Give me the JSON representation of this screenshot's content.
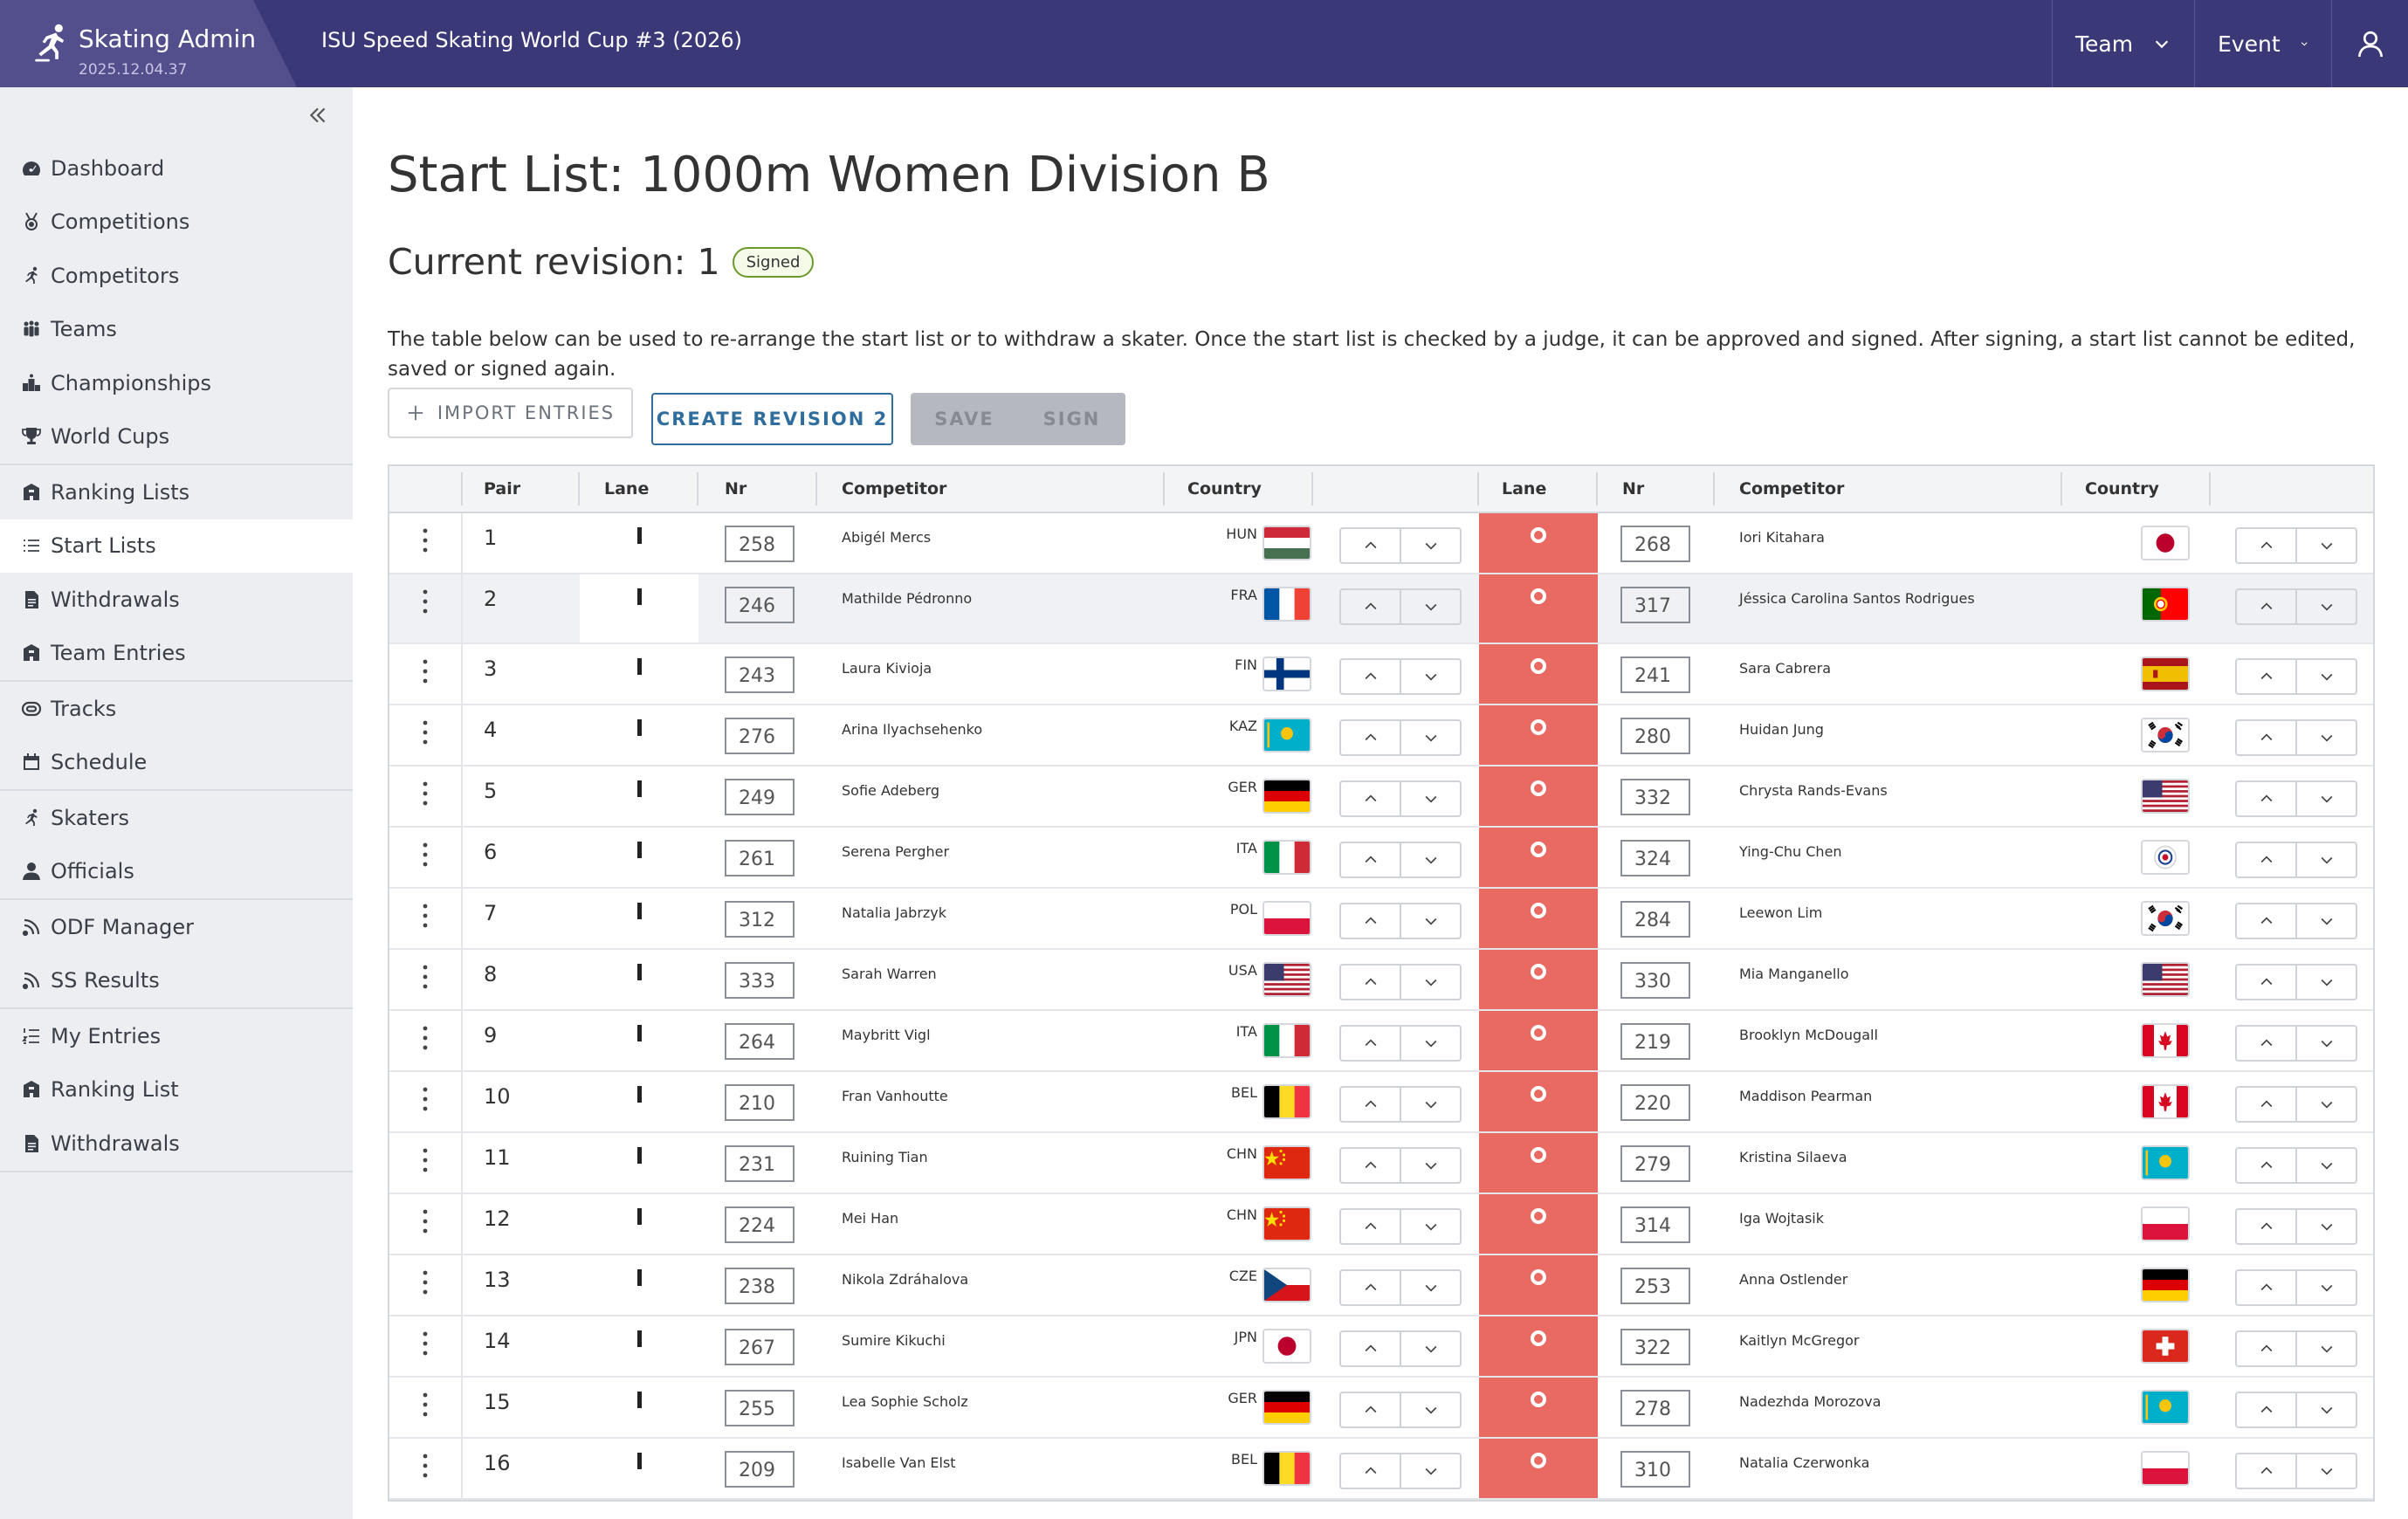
{
  "header": {
    "app_name": "Skating Admin",
    "version": "2025.12.04.37",
    "event_title": "ISU Speed Skating World Cup #3 (2026)",
    "nav_team": "Team",
    "nav_event": "Event",
    "user_icon": "user-icon",
    "bg_color": "#3b3878"
  },
  "sidebar": {
    "groups": [
      [
        {
          "label": "Dashboard",
          "icon": "dashboard-icon"
        },
        {
          "label": "Competitions",
          "icon": "medal-icon"
        },
        {
          "label": "Competitors",
          "icon": "skater-icon"
        },
        {
          "label": "Teams",
          "icon": "team-icon"
        },
        {
          "label": "Championships",
          "icon": "podium-icon"
        },
        {
          "label": "World Cups",
          "icon": "trophy-icon"
        }
      ],
      [
        {
          "label": "Ranking Lists",
          "icon": "ranking-icon"
        },
        {
          "label": "Start Lists",
          "icon": "list-icon",
          "active": true
        },
        {
          "label": "Withdrawals",
          "icon": "document-icon"
        },
        {
          "label": "Team Entries",
          "icon": "ranking-icon"
        }
      ],
      [
        {
          "label": "Tracks",
          "icon": "track-icon"
        },
        {
          "label": "Schedule",
          "icon": "calendar-icon"
        }
      ],
      [
        {
          "label": "Skaters",
          "icon": "skater-icon"
        },
        {
          "label": "Officials",
          "icon": "person-icon"
        }
      ],
      [
        {
          "label": "ODF Manager",
          "icon": "feed-icon"
        },
        {
          "label": "SS Results",
          "icon": "feed-icon"
        }
      ],
      [
        {
          "label": "My Entries",
          "icon": "numbered-list-icon"
        },
        {
          "label": "Ranking List",
          "icon": "ranking-icon"
        },
        {
          "label": "Withdrawals",
          "icon": "document-icon"
        }
      ]
    ]
  },
  "main": {
    "title": "Start List: 1000m Women Division B",
    "revision_label": "Current revision: 1",
    "revision_badge": "Signed",
    "description": "The table below can be used to re-arrange the start list or to withdraw a skater. Once the start list is checked by a judge, it can be approved and signed. After signing, a start list cannot be edited, saved or signed again.",
    "buttons": {
      "import": "IMPORT ENTRIES",
      "create_revision": "CREATE REVISION 2",
      "save": "SAVE",
      "sign": "SIGN"
    },
    "columns": {
      "pair": "Pair",
      "lane": "Lane",
      "nr": "Nr",
      "competitor": "Competitor",
      "country": "Country"
    },
    "lane_colors": {
      "inner": "#ffffff",
      "outer": "#e86a62"
    },
    "rows": [
      {
        "pair": "1",
        "left": {
          "nr": "258",
          "name": "Abigél Mercs",
          "country": "HUN"
        },
        "right": {
          "nr": "268",
          "name": "Iori Kitahara",
          "country": "JPN"
        }
      },
      {
        "pair": "2",
        "left": {
          "nr": "246",
          "name": "Mathilde Pédronno",
          "country": "FRA"
        },
        "right": {
          "nr": "317",
          "name": "Jéssica Carolina Santos Rodrigues",
          "country": "POR"
        }
      },
      {
        "pair": "3",
        "left": {
          "nr": "243",
          "name": "Laura Kivioja",
          "country": "FIN"
        },
        "right": {
          "nr": "241",
          "name": "Sara Cabrera",
          "country": "ESP"
        }
      },
      {
        "pair": "4",
        "left": {
          "nr": "276",
          "name": "Arina Ilyachsehenko",
          "country": "KAZ"
        },
        "right": {
          "nr": "280",
          "name": "Huidan Jung",
          "country": "KOR"
        }
      },
      {
        "pair": "5",
        "left": {
          "nr": "249",
          "name": "Sofie Adeberg",
          "country": "GER"
        },
        "right": {
          "nr": "332",
          "name": "Chrysta Rands-Evans",
          "country": "USA"
        }
      },
      {
        "pair": "6",
        "left": {
          "nr": "261",
          "name": "Serena Pergher",
          "country": "ITA"
        },
        "right": {
          "nr": "324",
          "name": "Ying-Chu Chen",
          "country": "TPE"
        }
      },
      {
        "pair": "7",
        "left": {
          "nr": "312",
          "name": "Natalia Jabrzyk",
          "country": "POL"
        },
        "right": {
          "nr": "284",
          "name": "Leewon Lim",
          "country": "KOR"
        }
      },
      {
        "pair": "8",
        "left": {
          "nr": "333",
          "name": "Sarah Warren",
          "country": "USA"
        },
        "right": {
          "nr": "330",
          "name": "Mia Manganello",
          "country": "USA"
        }
      },
      {
        "pair": "9",
        "left": {
          "nr": "264",
          "name": "Maybritt Vigl",
          "country": "ITA"
        },
        "right": {
          "nr": "219",
          "name": "Brooklyn McDougall",
          "country": "CAN"
        }
      },
      {
        "pair": "10",
        "left": {
          "nr": "210",
          "name": "Fran Vanhoutte",
          "country": "BEL"
        },
        "right": {
          "nr": "220",
          "name": "Maddison Pearman",
          "country": "CAN"
        }
      },
      {
        "pair": "11",
        "left": {
          "nr": "231",
          "name": "Ruining Tian",
          "country": "CHN"
        },
        "right": {
          "nr": "279",
          "name": "Kristina Silaeva",
          "country": "KAZ"
        }
      },
      {
        "pair": "12",
        "left": {
          "nr": "224",
          "name": "Mei Han",
          "country": "CHN"
        },
        "right": {
          "nr": "314",
          "name": "Iga Wojtasik",
          "country": "POL"
        }
      },
      {
        "pair": "13",
        "left": {
          "nr": "238",
          "name": "Nikola Zdráhalova",
          "country": "CZE"
        },
        "right": {
          "nr": "253",
          "name": "Anna Ostlender",
          "country": "GER"
        }
      },
      {
        "pair": "14",
        "left": {
          "nr": "267",
          "name": "Sumire Kikuchi",
          "country": "JPN"
        },
        "right": {
          "nr": "322",
          "name": "Kaitlyn McGregor",
          "country": "SUI"
        }
      },
      {
        "pair": "15",
        "left": {
          "nr": "255",
          "name": "Lea Sophie Scholz",
          "country": "GER"
        },
        "right": {
          "nr": "278",
          "name": "Nadezhda Morozova",
          "country": "KAZ"
        }
      },
      {
        "pair": "16",
        "left": {
          "nr": "209",
          "name": "Isabelle Van Elst",
          "country": "BEL"
        },
        "right": {
          "nr": "310",
          "name": "Natalia Czerwonka",
          "country": "POL"
        }
      }
    ]
  }
}
